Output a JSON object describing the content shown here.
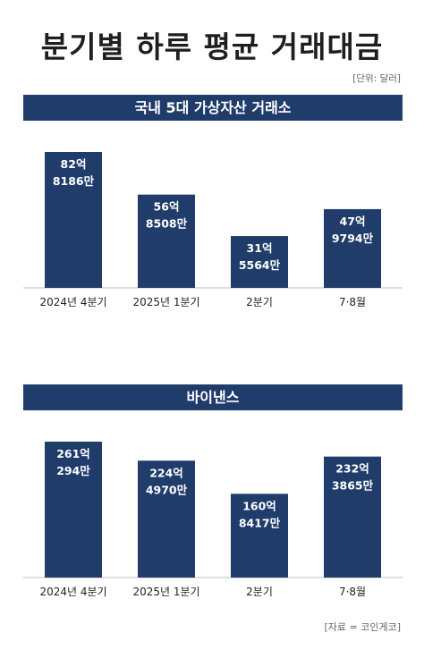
{
  "title": "분기별 하루 평균 거래대금",
  "unit": "[단위: 달러]",
  "source": "[자료 = 코인게코]",
  "colors": {
    "bar": "#203c6b",
    "header_bg": "#203c6b",
    "text": "#222222"
  },
  "chart_data": [
    {
      "type": "bar",
      "title": "국내 5대 가상자산 거래소",
      "categories": [
        "2024년 4분기",
        "2025년 1분기",
        "2분기",
        "7·8월"
      ],
      "values": [
        8281860000,
        5685080000,
        3155640000,
        4797940000
      ],
      "value_labels": [
        [
          "82억",
          "8186만"
        ],
        [
          "56억",
          "8508만"
        ],
        [
          "31억",
          "5564만"
        ],
        [
          "47억",
          "9794만"
        ]
      ],
      "xlabel": "",
      "ylabel": "",
      "grid": false
    },
    {
      "type": "bar",
      "title": "바이낸스",
      "categories": [
        "2024년 4분기",
        "2025년 1분기",
        "2분기",
        "7·8월"
      ],
      "values": [
        26102940000,
        22449700000,
        16084170000,
        23238650000
      ],
      "value_labels": [
        [
          "261억",
          "294만"
        ],
        [
          "224억",
          "4970만"
        ],
        [
          "160억",
          "8417만"
        ],
        [
          "232억",
          "3865만"
        ]
      ],
      "xlabel": "",
      "ylabel": "",
      "grid": false
    }
  ]
}
